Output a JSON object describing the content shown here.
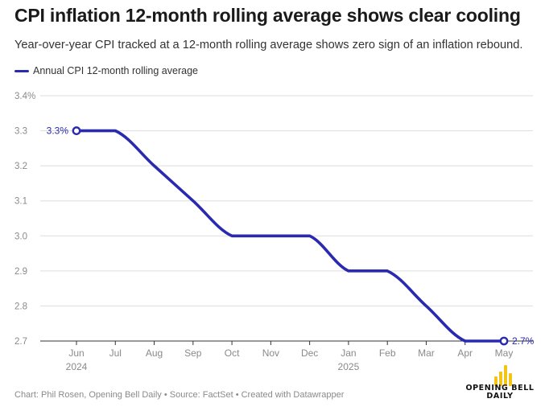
{
  "header": {
    "title": "CPI inflation 12-month rolling average shows clear cooling",
    "subtitle": "Year-over-year CPI tracked at a 12-month rolling average shows zero sign of an inflation rebound."
  },
  "legend": {
    "label": "Annual CPI 12-month rolling average",
    "color": "#2a2ab0"
  },
  "footer": {
    "credit": "Chart: Phil Rosen, Opening Bell Daily • Source: FactSet • Created with Datawrapper"
  },
  "logo": {
    "line1": "OPENING BELL",
    "line2": "DAILY",
    "icon": "bar-chart-icon",
    "color": "#f2c418"
  },
  "chart_data": {
    "type": "line",
    "title": "CPI inflation 12-month rolling average shows clear cooling",
    "xlabel": "",
    "ylabel": "",
    "categories": [
      "Jun",
      "Jul",
      "Aug",
      "Sep",
      "Oct",
      "Nov",
      "Dec",
      "Jan",
      "Feb",
      "Mar",
      "Apr",
      "May"
    ],
    "year_labels": {
      "Jun": "2024",
      "Jan": "2025"
    },
    "series": [
      {
        "name": "Annual CPI 12-month rolling average",
        "color": "#2a2ab0",
        "values": [
          3.3,
          3.3,
          3.2,
          3.1,
          3.0,
          3.0,
          3.0,
          2.9,
          2.9,
          2.8,
          2.7,
          2.7
        ]
      }
    ],
    "ylim": [
      2.7,
      3.4
    ],
    "yticks": [
      2.7,
      2.8,
      2.9,
      3.0,
      3.1,
      3.2,
      3.3,
      3.4
    ],
    "ytick_labels": [
      "2.7",
      "2.8",
      "2.9",
      "3.0",
      "3.1",
      "3.2",
      "3.3",
      "3.4%"
    ],
    "annotations": [
      {
        "index": 0,
        "text": "3.3%"
      },
      {
        "index": 11,
        "text": "2.7%"
      }
    ],
    "grid": true,
    "legend_position": "top-left"
  }
}
